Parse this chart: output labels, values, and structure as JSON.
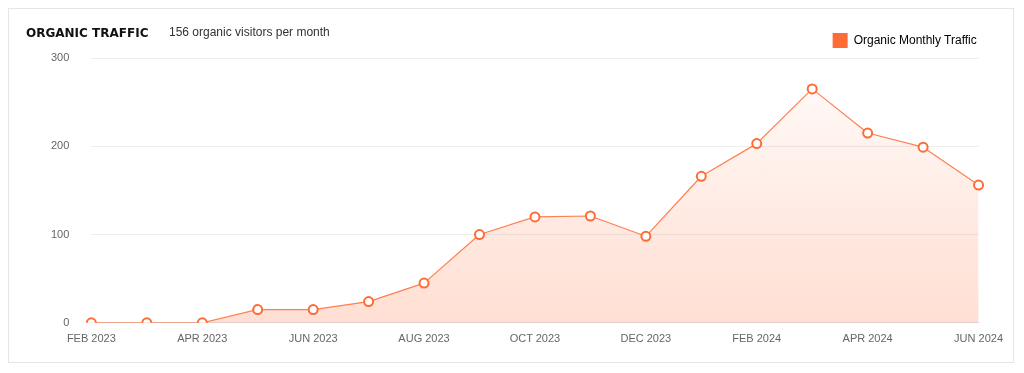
{
  "chart_data": {
    "type": "area",
    "title": "ORGANIC TRAFFIC",
    "subtitle": "156 organic visitors per month",
    "categories": [
      "FEB 2023",
      null,
      "APR 2023",
      null,
      "JUN 2023",
      null,
      "AUG 2023",
      null,
      "OCT 2023",
      null,
      "DEC 2023",
      null,
      "FEB 2024",
      null,
      "APR 2024",
      null,
      "JUN 2024"
    ],
    "series": [
      {
        "name": "Organic Monthly Traffic",
        "color": "#ff6b35",
        "values": [
          0,
          0,
          0,
          15,
          15,
          24,
          45,
          100,
          120,
          121,
          98,
          166,
          203,
          265,
          215,
          199,
          156
        ]
      }
    ],
    "ylim": [
      0,
      300
    ],
    "yticks": [
      0,
      100,
      200,
      300
    ],
    "grid": "y",
    "legend": "top right",
    "marker": "circle",
    "line_style": "solid"
  }
}
